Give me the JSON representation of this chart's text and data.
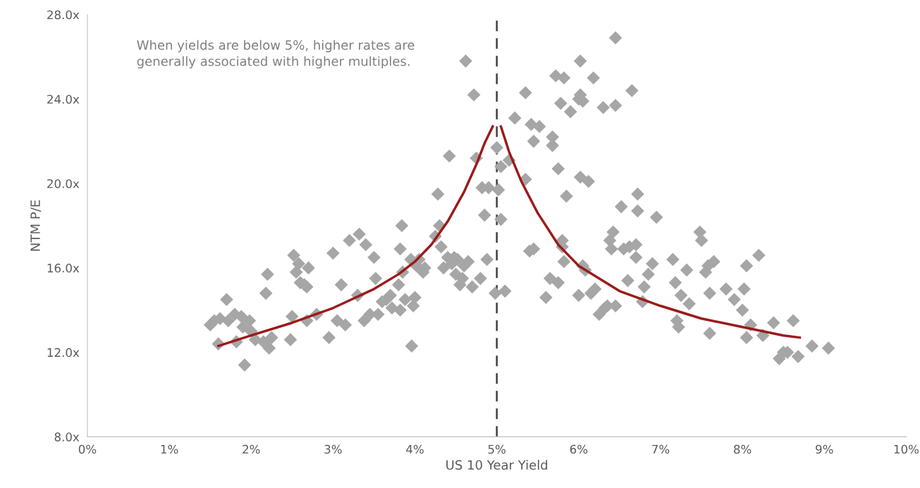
{
  "chart_data": {
    "type": "scatter",
    "xlabel": "US 10 Year Yield",
    "ylabel": "NTM P/E",
    "annotations": [
      "When yields are below 5%, higher rates are generally associated with higher multiples."
    ],
    "xlim": [
      0,
      10
    ],
    "ylim": [
      8,
      28
    ],
    "xticks": [
      {
        "value": 0,
        "label": "0%"
      },
      {
        "value": 1,
        "label": "1%"
      },
      {
        "value": 2,
        "label": "2%"
      },
      {
        "value": 3,
        "label": "3%"
      },
      {
        "value": 4,
        "label": "4%"
      },
      {
        "value": 5,
        "label": "5%"
      },
      {
        "value": 6,
        "label": "6%"
      },
      {
        "value": 7,
        "label": "7%"
      },
      {
        "value": 8,
        "label": "8%"
      },
      {
        "value": 9,
        "label": "9%"
      },
      {
        "value": 10,
        "label": "10%"
      }
    ],
    "yticks": [
      {
        "value": 8,
        "label": "8.0x"
      },
      {
        "value": 12,
        "label": "12.0x"
      },
      {
        "value": 16,
        "label": "16.0x"
      },
      {
        "value": 20,
        "label": "20.0x"
      },
      {
        "value": 24,
        "label": "24.0x"
      },
      {
        "value": 28,
        "label": "28.0x"
      }
    ],
    "grid": false,
    "legend": false,
    "ref_lines": [
      {
        "axis": "x",
        "value": 5,
        "color": "#404040",
        "line_style": "dashed"
      }
    ],
    "series": [
      {
        "color": "#a6a6a6",
        "marker": "diamond",
        "x": [
          1.5,
          1.55,
          1.6,
          1.62,
          1.7,
          1.72,
          1.8,
          1.82,
          1.88,
          1.9,
          1.92,
          1.98,
          2.0,
          2.05,
          2.15,
          2.18,
          2.2,
          2.22,
          2.25,
          2.48,
          2.5,
          2.52,
          2.55,
          2.58,
          2.6,
          2.65,
          2.68,
          2.7,
          2.68,
          2.8,
          2.95,
          3.0,
          3.05,
          3.1,
          3.15,
          3.2,
          3.3,
          3.32,
          3.38,
          3.4,
          3.45,
          3.5,
          3.52,
          3.55,
          3.6,
          3.65,
          3.7,
          3.72,
          3.8,
          3.82,
          3.82,
          3.84,
          3.85,
          3.88,
          3.95,
          3.96,
          3.98,
          4.0,
          4.02,
          4.05,
          4.1,
          4.12,
          4.25,
          4.28,
          4.3,
          4.32,
          4.35,
          4.4,
          4.42,
          4.45,
          4.48,
          4.5,
          4.52,
          4.55,
          4.58,
          4.6,
          4.62,
          4.65,
          4.7,
          4.72,
          4.75,
          4.8,
          4.82,
          4.85,
          4.88,
          4.9,
          4.98,
          5.0,
          5.02,
          5.05,
          5.05,
          5.1,
          5.15,
          5.22,
          5.35,
          5.35,
          5.4,
          5.42,
          5.45,
          5.45,
          5.52,
          5.6,
          5.65,
          5.68,
          5.68,
          5.72,
          5.75,
          5.75,
          5.78,
          5.8,
          5.8,
          5.82,
          5.82,
          5.85,
          5.9,
          6.0,
          6.02,
          6.05,
          6.02,
          6.02,
          6.05,
          6.08,
          6.0,
          6.12,
          6.15,
          6.18,
          6.2,
          6.25,
          6.3,
          6.32,
          6.35,
          6.38,
          6.4,
          6.42,
          6.45,
          6.45,
          6.45,
          6.52,
          6.55,
          6.6,
          6.62,
          6.65,
          6.7,
          6.7,
          6.72,
          6.72,
          6.78,
          6.8,
          6.85,
          6.9,
          6.95,
          7.15,
          7.18,
          7.2,
          7.22,
          7.25,
          7.32,
          7.35,
          7.48,
          7.5,
          7.55,
          7.58,
          7.6,
          7.6,
          7.65,
          7.8,
          7.9,
          8.0,
          8.02,
          8.05,
          8.05,
          8.1,
          8.2,
          8.25,
          8.38,
          8.45,
          8.5,
          8.55,
          8.62,
          8.68,
          8.85,
          9.05
        ],
        "values": [
          13.3,
          13.5,
          12.4,
          13.6,
          14.5,
          13.5,
          13.8,
          12.5,
          13.7,
          13.2,
          11.4,
          13.5,
          13.0,
          12.6,
          12.5,
          14.8,
          15.7,
          12.2,
          12.7,
          12.6,
          13.7,
          16.6,
          15.8,
          16.2,
          15.3,
          15.2,
          13.5,
          16.0,
          15.1,
          13.8,
          12.7,
          16.7,
          13.5,
          15.2,
          13.3,
          17.3,
          14.7,
          17.6,
          13.5,
          17.1,
          13.8,
          16.5,
          15.5,
          13.8,
          14.4,
          14.5,
          14.7,
          14.1,
          15.2,
          14.0,
          16.9,
          18.0,
          15.8,
          14.5,
          16.4,
          12.3,
          14.2,
          14.6,
          16.1,
          16.4,
          15.8,
          16.0,
          17.5,
          19.5,
          18.0,
          17.0,
          16.0,
          16.5,
          21.3,
          16.2,
          16.5,
          15.7,
          16.4,
          15.2,
          15.5,
          16.1,
          25.8,
          16.3,
          15.1,
          24.2,
          21.2,
          15.5,
          19.8,
          18.5,
          16.4,
          19.8,
          14.8,
          21.7,
          19.7,
          20.8,
          18.3,
          14.9,
          21.1,
          23.1,
          24.3,
          20.2,
          16.8,
          22.8,
          22.0,
          16.9,
          22.7,
          14.6,
          15.5,
          22.2,
          21.8,
          25.1,
          20.7,
          15.3,
          23.8,
          17.3,
          17.0,
          16.3,
          25.0,
          19.4,
          23.4,
          24.0,
          24.2,
          23.9,
          25.8,
          20.3,
          16.1,
          15.9,
          14.7,
          20.1,
          14.8,
          25.0,
          15.0,
          13.8,
          23.6,
          14.1,
          14.2,
          17.3,
          16.9,
          17.7,
          23.7,
          14.2,
          26.9,
          18.9,
          16.9,
          15.4,
          17.0,
          24.4,
          17.1,
          16.5,
          18.7,
          19.5,
          14.4,
          15.1,
          15.7,
          16.2,
          18.4,
          16.4,
          15.3,
          13.5,
          13.2,
          14.7,
          15.9,
          14.3,
          17.7,
          17.3,
          15.8,
          16.1,
          14.8,
          12.9,
          16.3,
          15.0,
          14.5,
          14.0,
          15.0,
          12.7,
          16.1,
          13.3,
          16.6,
          12.8,
          13.4,
          11.7,
          12.0,
          12.0,
          13.5,
          11.8,
          12.3,
          12.2
        ]
      },
      {
        "type": "line",
        "color": "#9b1b1b",
        "x": [
          1.6,
          2.0,
          2.5,
          3.0,
          3.5,
          3.8,
          4.0,
          4.2,
          4.4,
          4.6,
          4.75,
          4.85,
          4.95
        ],
        "values": [
          12.3,
          12.8,
          13.4,
          14.1,
          15.0,
          15.7,
          16.3,
          17.1,
          18.2,
          19.6,
          20.9,
          21.9,
          22.7
        ]
      },
      {
        "type": "line",
        "color": "#9b1b1b",
        "x": [
          5.05,
          5.15,
          5.3,
          5.5,
          5.75,
          6.0,
          6.5,
          7.0,
          7.5,
          8.0,
          8.5,
          8.7
        ],
        "values": [
          22.7,
          21.5,
          20.1,
          18.6,
          17.1,
          16.1,
          14.9,
          14.2,
          13.6,
          13.2,
          12.8,
          12.7
        ]
      }
    ]
  }
}
